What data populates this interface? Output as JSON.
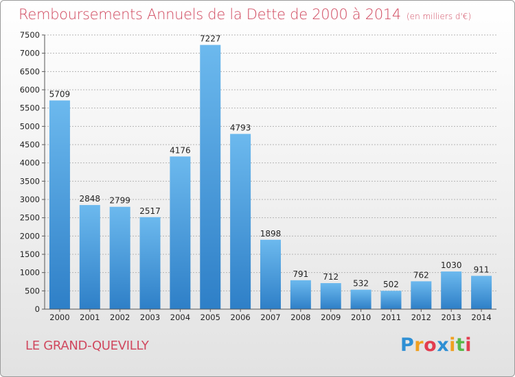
{
  "title": "Remboursements Annuels de la Dette de 2000 à 2014",
  "subtitle": "(en milliers d'€)",
  "location": "LE GRAND-QUEVILLY",
  "logo": {
    "letters": [
      "P",
      "r",
      "o",
      "x",
      "i",
      "t",
      "i"
    ],
    "colors": [
      "#2e8fd4",
      "#f0a020",
      "#e23c4e",
      "#2e8fd4",
      "#f0a020",
      "#58b848",
      "#e23c4e"
    ]
  },
  "colors": {
    "bar_light": "#6cb9ee",
    "bar_dark": "#2e7fc7",
    "title": "#d0485e"
  },
  "chart_data": {
    "type": "bar",
    "categories": [
      "2000",
      "2001",
      "2002",
      "2003",
      "2004",
      "2005",
      "2006",
      "2007",
      "2008",
      "2009",
      "2010",
      "2011",
      "2012",
      "2013",
      "2014"
    ],
    "values": [
      5709,
      2848,
      2799,
      2517,
      4176,
      7227,
      4793,
      1898,
      791,
      712,
      532,
      502,
      762,
      1030,
      911
    ],
    "ylim": [
      0,
      7500
    ],
    "yticks": [
      0,
      500,
      1000,
      1500,
      2000,
      2500,
      3000,
      3500,
      4000,
      4500,
      5000,
      5500,
      6000,
      6500,
      7000,
      7500
    ],
    "grid": true,
    "data_labels": true
  }
}
